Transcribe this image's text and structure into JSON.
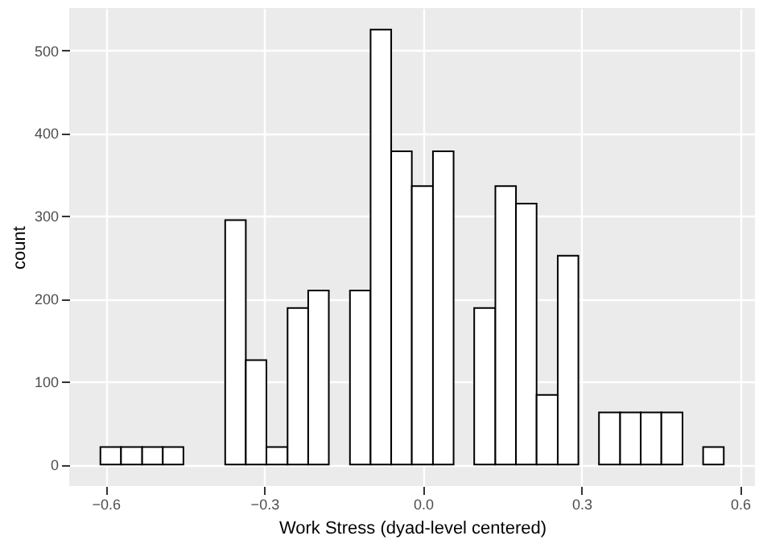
{
  "chart_data": {
    "type": "histogram",
    "xlabel": "Work Stress (dyad-level centered)",
    "ylabel": "count",
    "bins": [
      -0.61,
      -0.571,
      -0.531,
      -0.492,
      -0.453,
      -0.374,
      -0.335,
      -0.296,
      -0.256,
      -0.217,
      -0.178,
      -0.138,
      -0.099,
      -0.06,
      -0.021,
      0.019,
      0.058,
      0.097,
      0.137,
      0.176,
      0.215,
      0.255,
      0.294,
      0.333,
      0.373,
      0.412,
      0.451,
      0.491,
      0.53,
      0.569
    ],
    "values": [
      21,
      21,
      21,
      21,
      0,
      295,
      126,
      21,
      189,
      210,
      0,
      210,
      525,
      378,
      336,
      378,
      0,
      189,
      336,
      315,
      84,
      252,
      0,
      63,
      63,
      63,
      63,
      0,
      21
    ],
    "color": "#ffffff",
    "xlim": [
      -0.669,
      0.628
    ],
    "xticks": [
      -0.6,
      -0.3,
      {
        "value": 0,
        "label": "0.0"
      },
      0.3,
      0.6
    ],
    "ylim": [
      -26,
      551
    ],
    "yticks": [
      0,
      100,
      200,
      300,
      400,
      500
    ],
    "grid": true
  }
}
